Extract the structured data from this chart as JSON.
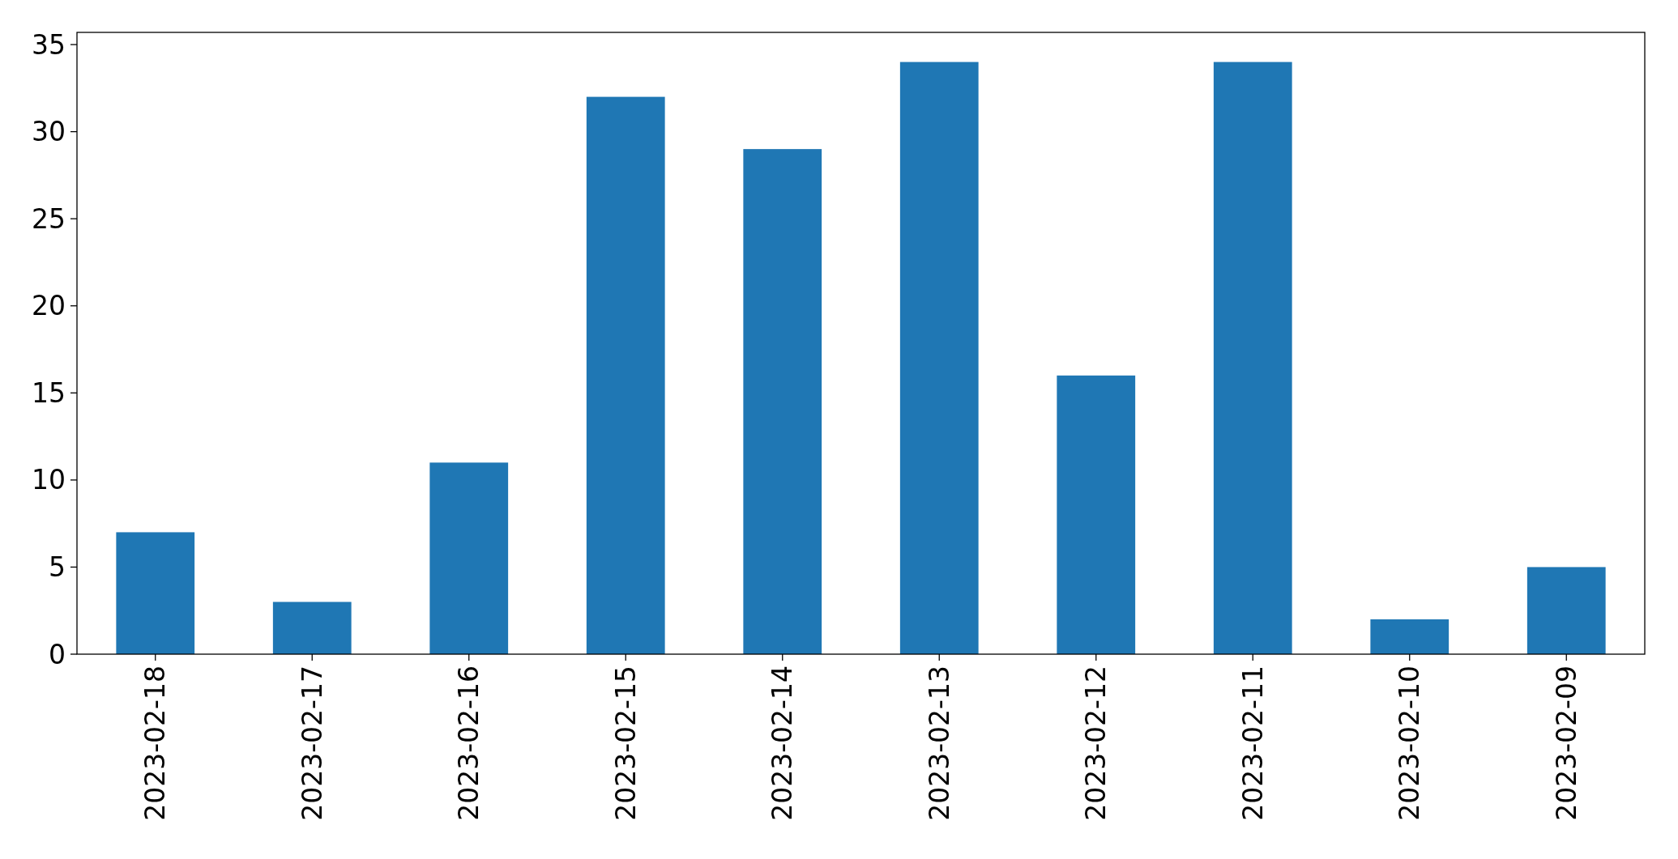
{
  "chart_data": {
    "type": "bar",
    "categories": [
      "2023-02-18",
      "2023-02-17",
      "2023-02-16",
      "2023-02-15",
      "2023-02-14",
      "2023-02-13",
      "2023-02-12",
      "2023-02-11",
      "2023-02-10",
      "2023-02-09"
    ],
    "values": [
      7,
      3,
      11,
      32,
      29,
      34,
      16,
      34,
      2,
      5
    ],
    "color": "#1f77b4",
    "ylim": [
      0,
      35.7
    ],
    "yticks": [
      0,
      5,
      10,
      15,
      20,
      25,
      30,
      35
    ],
    "grid": false
  }
}
